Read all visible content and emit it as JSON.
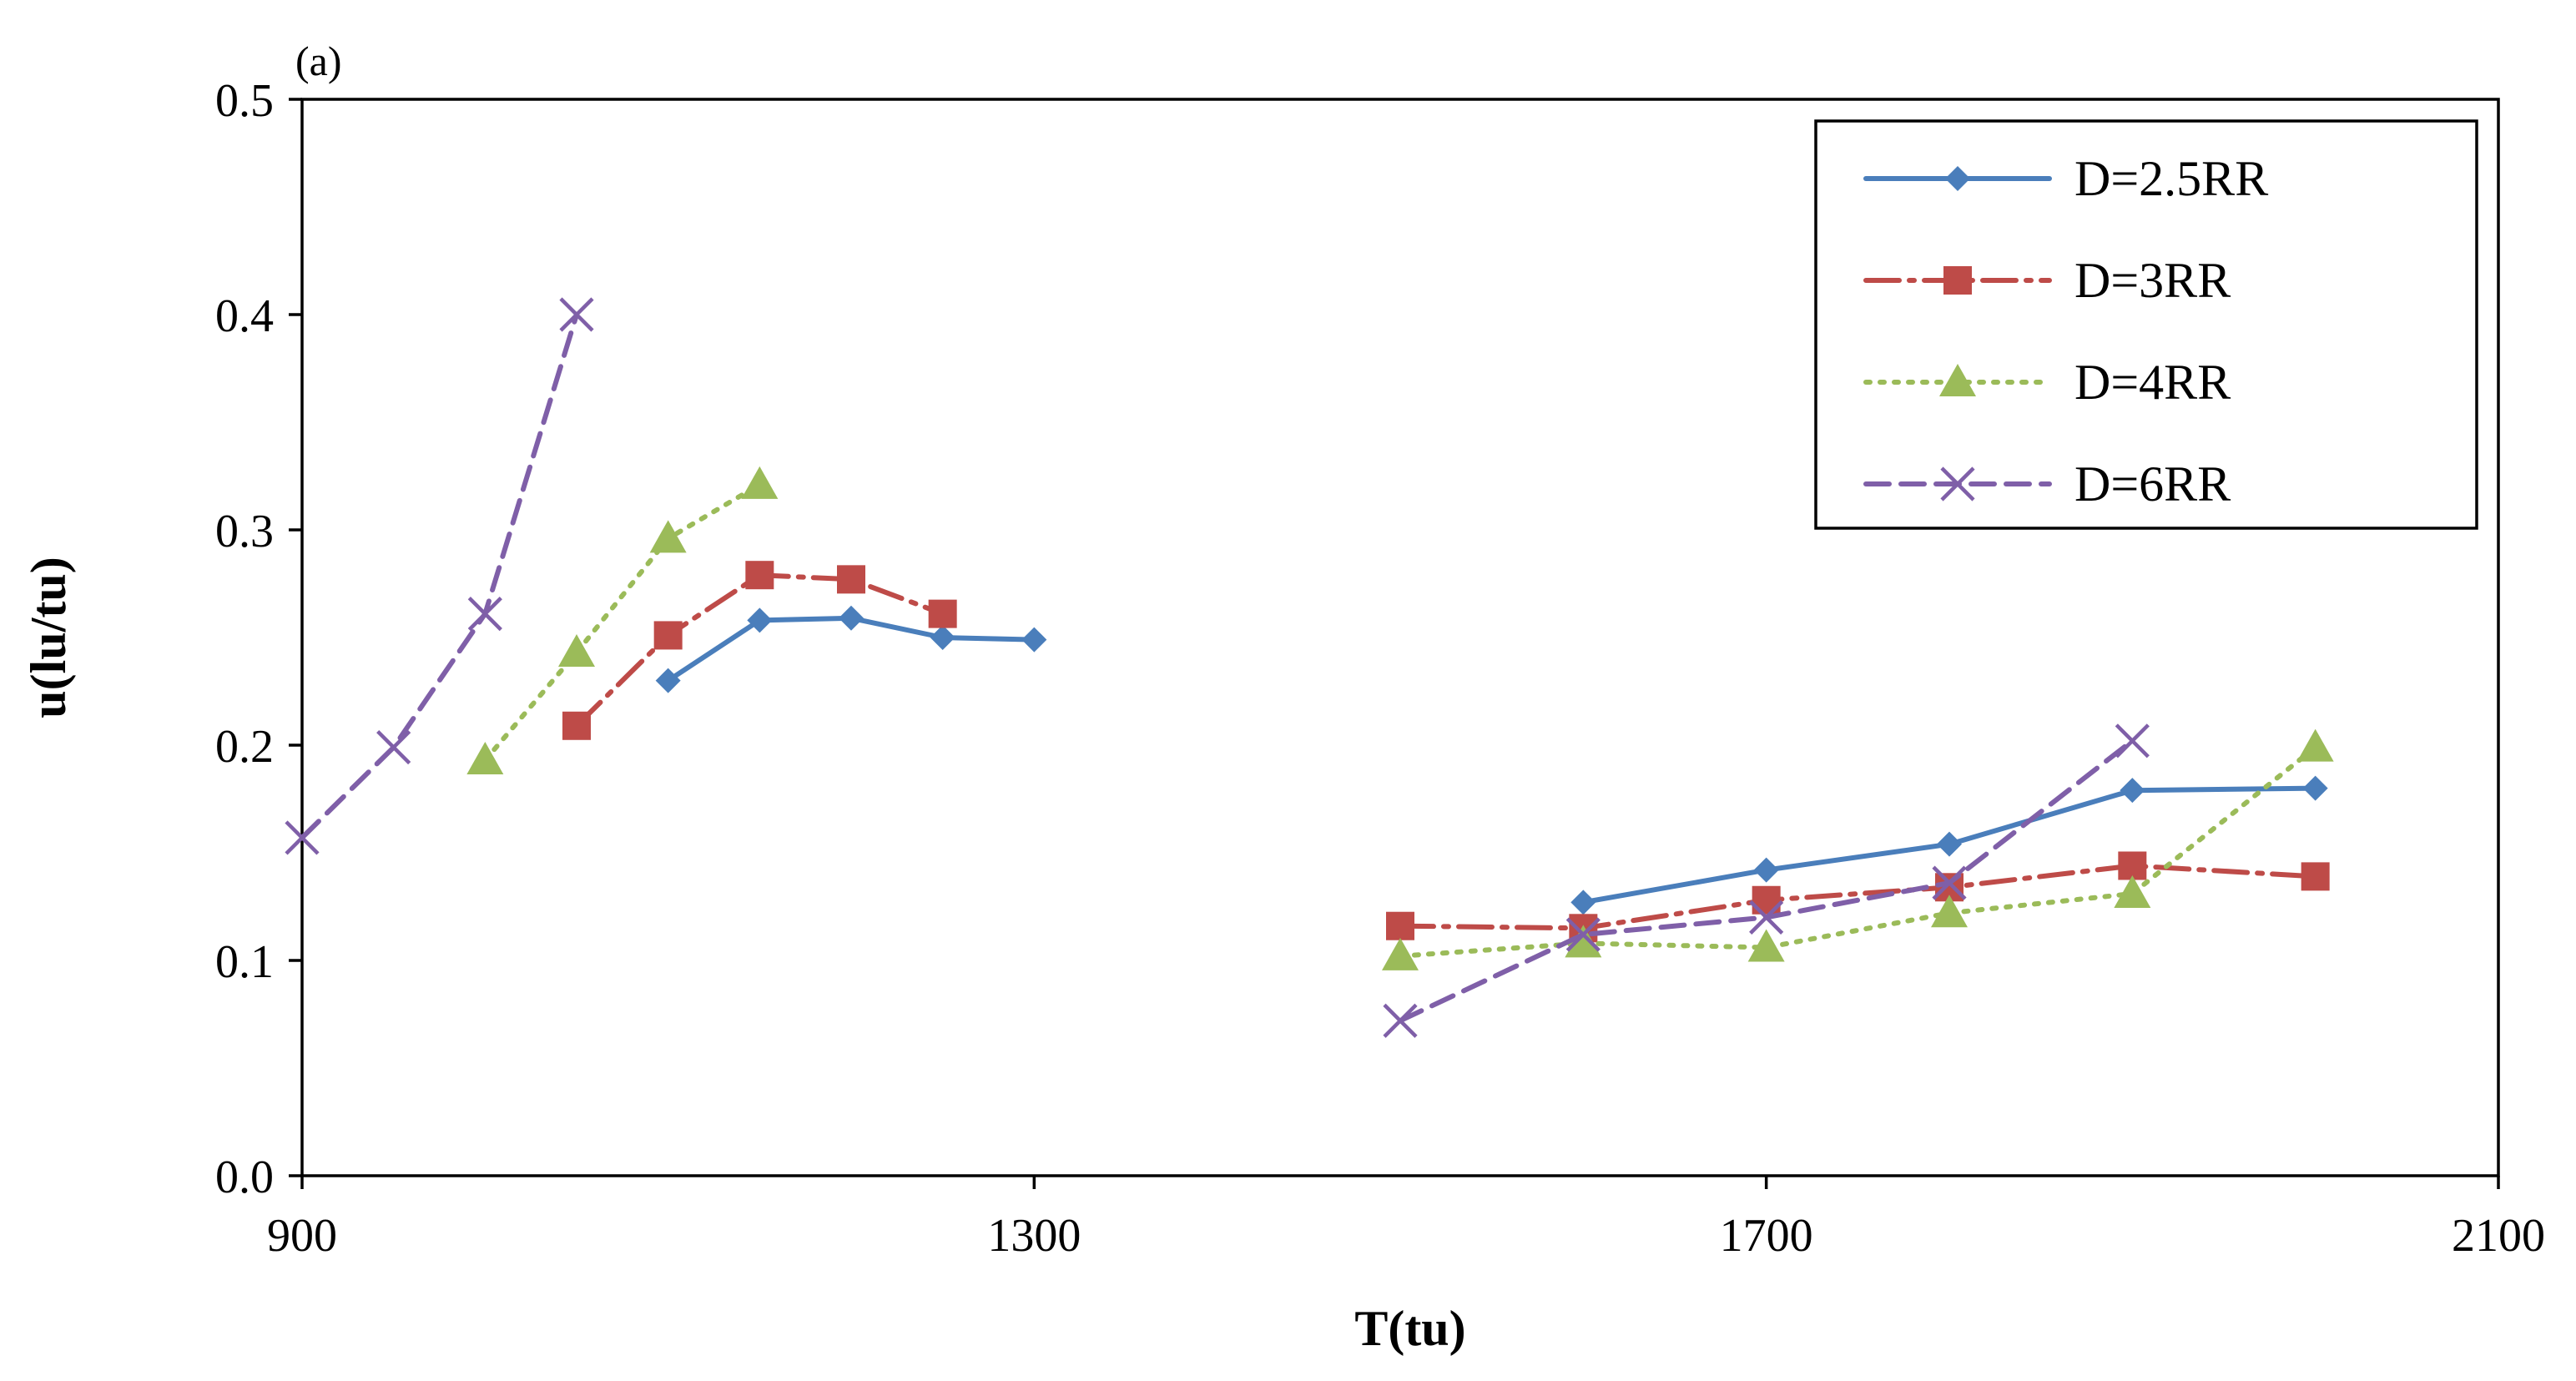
{
  "chart_data": {
    "type": "line",
    "panel_label": "(a)",
    "title": "",
    "xlabel": "T(tu)",
    "ylabel": "u(lu/tu)",
    "xlim": [
      900,
      2100
    ],
    "ylim": [
      0.0,
      0.5
    ],
    "xticks": [
      900,
      1300,
      1700,
      2100
    ],
    "xtick_labels": [
      "900",
      "1300",
      "1700",
      "2100"
    ],
    "yticks": [
      0.0,
      0.1,
      0.2,
      0.3,
      0.4,
      0.5
    ],
    "ytick_labels": [
      "0.0",
      "0.1",
      "0.2",
      "0.3",
      "0.4",
      "0.5"
    ],
    "grid": false,
    "legend_position": "top-right",
    "series": [
      {
        "name": "D=2.5RR",
        "color": "#4a7ebb",
        "line_style": "solid",
        "marker": "diamond",
        "segments": [
          {
            "x": [
              1100,
              1150,
              1200,
              1250,
              1300
            ],
            "y": [
              0.23,
              0.258,
              0.259,
              0.25,
              0.249
            ]
          },
          {
            "x": [
              1600,
              1700,
              1800,
              1900,
              2000
            ],
            "y": [
              0.127,
              0.142,
              0.154,
              0.179,
              0.18
            ]
          }
        ]
      },
      {
        "name": "D=3RR",
        "color": "#be4b48",
        "line_style": "dashdot",
        "marker": "square",
        "segments": [
          {
            "x": [
              1050,
              1100,
              1150,
              1200,
              1250
            ],
            "y": [
              0.209,
              0.251,
              0.279,
              0.277,
              0.261
            ]
          },
          {
            "x": [
              1500,
              1600,
              1700,
              1800,
              1900,
              2000
            ],
            "y": [
              0.116,
              0.115,
              0.128,
              0.134,
              0.144,
              0.139
            ]
          }
        ]
      },
      {
        "name": "D=4RR",
        "color": "#9bbb59",
        "line_style": "dotted",
        "marker": "triangle",
        "segments": [
          {
            "x": [
              1000,
              1050,
              1100,
              1150
            ],
            "y": [
              0.193,
              0.243,
              0.296,
              0.321
            ]
          },
          {
            "x": [
              1500,
              1600,
              1700,
              1800,
              1900,
              2000
            ],
            "y": [
              0.102,
              0.108,
              0.106,
              0.122,
              0.131,
              0.199
            ]
          }
        ]
      },
      {
        "name": "D=6RR",
        "color": "#7f5fa8",
        "line_style": "dashed",
        "marker": "x",
        "segments": [
          {
            "x": [
              900,
              950,
              1000,
              1050
            ],
            "y": [
              0.157,
              0.199,
              0.261,
              0.4
            ]
          },
          {
            "x": [
              1500,
              1600,
              1700,
              1800,
              1900
            ],
            "y": [
              0.072,
              0.112,
              0.12,
              0.136,
              0.202
            ]
          }
        ]
      }
    ]
  }
}
